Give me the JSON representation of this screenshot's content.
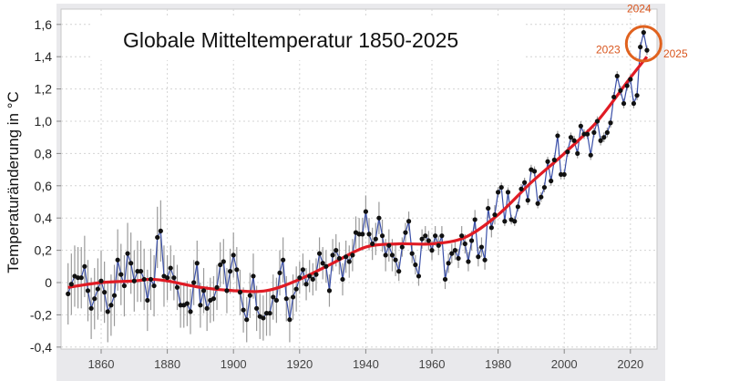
{
  "chart_data": {
    "type": "line",
    "title": "Globale Mitteltemperatur 1850-2025",
    "xlabel": "",
    "ylabel": "Temperaturänderung in °C",
    "xlim": [
      1849,
      2027
    ],
    "ylim": [
      -0.4,
      1.7
    ],
    "grid": true,
    "x_ticks": [
      1860,
      1880,
      1900,
      1920,
      1940,
      1960,
      1980,
      2000,
      2020
    ],
    "x_tick_labels": [
      "1860",
      "1880",
      "1900",
      "1920",
      "1940",
      "1960",
      "1980",
      "2000",
      "2020"
    ],
    "y_ticks": [
      -0.4,
      -0.2,
      0,
      0.2,
      0.4,
      0.6,
      0.8,
      1.0,
      1.2,
      1.4,
      1.6
    ],
    "y_tick_labels": [
      "-0,4",
      "-0,2",
      "0",
      "0,2",
      "0,4",
      "0,6",
      "0,8",
      "1,0",
      "1,2",
      "1,4",
      "1,6"
    ],
    "colors": {
      "annual_line": "#3a4fa8",
      "points": "#111111",
      "error_bars": "#9a9a9a",
      "trend": "#e01b24",
      "highlight": "#e0621f"
    },
    "annual": {
      "start_year": 1850,
      "values": [
        -0.07,
        -0.01,
        0.04,
        0.03,
        0.03,
        0.1,
        -0.05,
        -0.16,
        -0.1,
        -0.04,
        0.01,
        -0.06,
        -0.18,
        -0.14,
        -0.08,
        0.14,
        0.05,
        -0.02,
        0.18,
        0.12,
        0.01,
        0.07,
        0.07,
        0.02,
        -0.11,
        0.02,
        -0.02,
        0.28,
        0.32,
        0.04,
        0.03,
        0.09,
        0.03,
        -0.03,
        -0.14,
        -0.14,
        -0.13,
        -0.18,
        0.0,
        0.12,
        -0.14,
        -0.05,
        -0.16,
        -0.11,
        -0.1,
        -0.03,
        0.11,
        0.13,
        -0.05,
        0.07,
        0.17,
        0.08,
        -0.06,
        -0.17,
        -0.23,
        -0.08,
        0.04,
        -0.16,
        -0.21,
        -0.22,
        -0.19,
        -0.19,
        -0.09,
        -0.11,
        0.06,
        0.14,
        -0.1,
        -0.23,
        -0.09,
        -0.04,
        0.03,
        0.08,
        -0.01,
        0.04,
        0.02,
        0.05,
        0.18,
        0.12,
        0.1,
        -0.05,
        0.17,
        0.2,
        0.15,
        0.02,
        0.16,
        0.13,
        0.17,
        0.31,
        0.3,
        0.3,
        0.44,
        0.3,
        0.24,
        0.27,
        0.4,
        0.29,
        0.17,
        0.23,
        0.17,
        0.14,
        0.07,
        0.22,
        0.31,
        0.38,
        0.18,
        0.11,
        0.04,
        0.27,
        0.29,
        0.26,
        0.2,
        0.29,
        0.23,
        0.29,
        0.02,
        0.12,
        0.18,
        0.2,
        0.15,
        0.29,
        0.24,
        0.13,
        0.26,
        0.39,
        0.16,
        0.22,
        0.14,
        0.46,
        0.34,
        0.42,
        0.56,
        0.59,
        0.38,
        0.56,
        0.39,
        0.38,
        0.47,
        0.58,
        0.62,
        0.51,
        0.7,
        0.69,
        0.49,
        0.53,
        0.59,
        0.75,
        0.63,
        0.76,
        0.91,
        0.67,
        0.67,
        0.81,
        0.9,
        0.88,
        0.8,
        0.97,
        0.92,
        0.92,
        0.79,
        0.93,
        1.0,
        0.88,
        0.9,
        0.93,
        0.99,
        1.15,
        1.28,
        1.19,
        1.11,
        1.22,
        1.26,
        1.11,
        1.16,
        1.46,
        1.55,
        1.44
      ]
    },
    "trend": {
      "x": [
        1850,
        1860,
        1870,
        1875,
        1880,
        1890,
        1900,
        1910,
        1920,
        1930,
        1940,
        1950,
        1960,
        1970,
        1980,
        1990,
        2000,
        2010,
        2020,
        2025
      ],
      "y": [
        -0.03,
        0.0,
        0.01,
        0.02,
        0.01,
        -0.03,
        -0.05,
        -0.05,
        0.02,
        0.12,
        0.22,
        0.24,
        0.24,
        0.28,
        0.42,
        0.62,
        0.8,
        1.0,
        1.27,
        1.4
      ]
    },
    "annotations": [
      {
        "year": 2023,
        "label": "2023"
      },
      {
        "year": 2024,
        "label": "2024"
      },
      {
        "year": 2025,
        "label": "2025"
      }
    ]
  }
}
